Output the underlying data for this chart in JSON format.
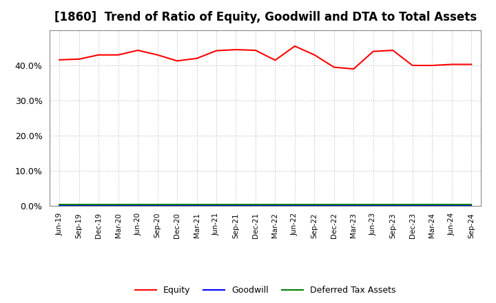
{
  "title": "[1860]  Trend of Ratio of Equity, Goodwill and DTA to Total Assets",
  "x_labels": [
    "Jun-19",
    "Sep-19",
    "Dec-19",
    "Mar-20",
    "Jun-20",
    "Sep-20",
    "Dec-20",
    "Mar-21",
    "Jun-21",
    "Sep-21",
    "Dec-21",
    "Mar-22",
    "Jun-22",
    "Sep-22",
    "Dec-22",
    "Mar-23",
    "Jun-23",
    "Sep-23",
    "Dec-23",
    "Mar-24",
    "Jun-24",
    "Sep-24"
  ],
  "equity": [
    0.416,
    0.418,
    0.43,
    0.43,
    0.443,
    0.43,
    0.413,
    0.42,
    0.442,
    0.445,
    0.443,
    0.415,
    0.455,
    0.43,
    0.395,
    0.39,
    0.44,
    0.443,
    0.4,
    0.4,
    0.403,
    0.403
  ],
  "goodwill": [
    0.001,
    0.001,
    0.001,
    0.001,
    0.001,
    0.001,
    0.001,
    0.001,
    0.001,
    0.001,
    0.001,
    0.001,
    0.001,
    0.001,
    0.002,
    0.001,
    0.001,
    0.001,
    0.001,
    0.001,
    0.001,
    0.001
  ],
  "dta": [
    0.005,
    0.005,
    0.005,
    0.005,
    0.005,
    0.005,
    0.005,
    0.005,
    0.005,
    0.005,
    0.005,
    0.005,
    0.005,
    0.005,
    0.005,
    0.005,
    0.005,
    0.005,
    0.005,
    0.005,
    0.005,
    0.005
  ],
  "equity_color": "#FF0000",
  "goodwill_color": "#0000FF",
  "dta_color": "#008000",
  "ylim": [
    0.0,
    0.5
  ],
  "yticks": [
    0.0,
    0.1,
    0.2,
    0.3,
    0.4
  ],
  "background_color": "#FFFFFF",
  "plot_bg_color": "#FFFFFF",
  "grid_color": "#AAAAAA",
  "title_fontsize": 12,
  "legend_labels": [
    "Equity",
    "Goodwill",
    "Deferred Tax Assets"
  ]
}
